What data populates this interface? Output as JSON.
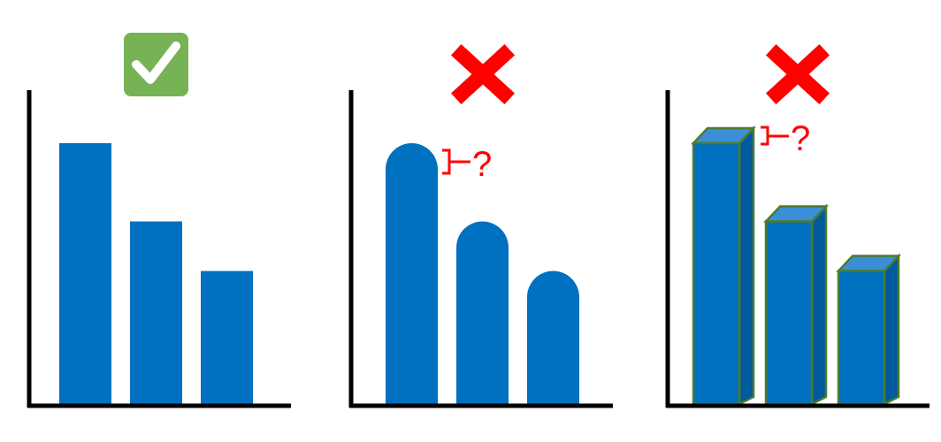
{
  "colors": {
    "bar": "#0070c0",
    "bar_top": "#3a8fd6",
    "bar_side": "#005a9e",
    "bar_outline": "#4e7a2e",
    "axis": "#000000",
    "check_bg": "#77b255",
    "cross": "#ff0000",
    "annotation": "#ff0000"
  },
  "panels": [
    {
      "style": "flat rectangular bars",
      "verdict": "correct",
      "icon": "check-icon"
    },
    {
      "style": "rounded-top bars",
      "verdict": "incorrect",
      "icon": "cross-icon",
      "annotation": "?"
    },
    {
      "style": "3D extruded bars",
      "verdict": "incorrect",
      "icon": "cross-icon",
      "annotation": "?"
    }
  ],
  "chart_data": {
    "type": "bar",
    "categories": [
      "",
      "",
      ""
    ],
    "values": [
      100,
      70,
      51
    ],
    "ylim": [
      0,
      100
    ]
  }
}
